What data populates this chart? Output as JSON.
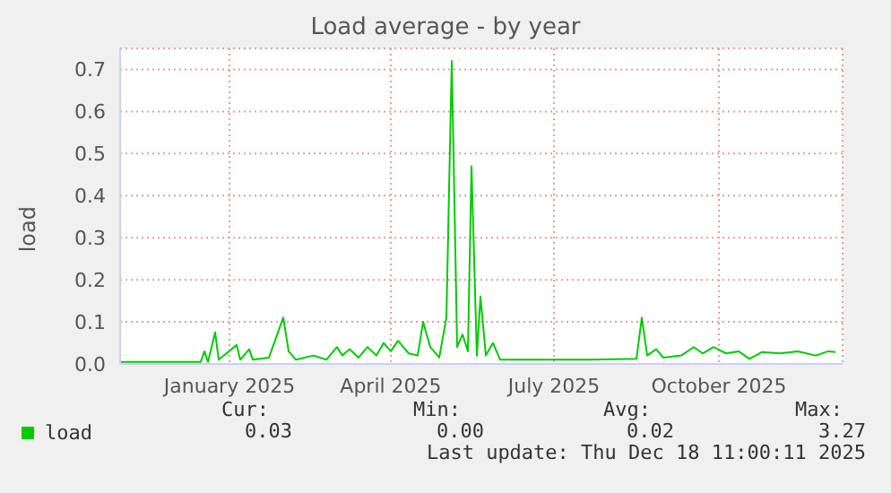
{
  "chart_data": {
    "type": "line",
    "title": "Load average - by year",
    "ylabel": "load",
    "x": [
      "2024-11-01",
      "2024-12-04",
      "2024-12-16",
      "2024-12-18",
      "2024-12-20",
      "2024-12-24",
      "2024-12-26",
      "2025-01-05",
      "2025-01-07",
      "2025-01-12",
      "2025-01-14",
      "2025-01-23",
      "2025-01-31",
      "2025-02-03",
      "2025-02-07",
      "2025-02-17",
      "2025-02-24",
      "2025-03-02",
      "2025-03-05",
      "2025-03-09",
      "2025-03-14",
      "2025-03-19",
      "2025-03-24",
      "2025-03-28",
      "2025-04-01",
      "2025-04-05",
      "2025-04-11",
      "2025-04-16",
      "2025-04-19",
      "2025-04-23",
      "2025-04-28",
      "2025-05-02",
      "2025-05-05",
      "2025-05-08",
      "2025-05-11",
      "2025-05-14",
      "2025-05-16",
      "2025-05-19",
      "2025-05-21",
      "2025-05-24",
      "2025-05-28",
      "2025-06-01",
      "2025-06-22",
      "2025-07-22",
      "2025-08-16",
      "2025-08-19",
      "2025-08-22",
      "2025-08-27",
      "2025-08-31",
      "2025-09-10",
      "2025-09-17",
      "2025-09-22",
      "2025-09-28",
      "2025-10-05",
      "2025-10-12",
      "2025-10-18",
      "2025-10-25",
      "2025-11-04",
      "2025-11-14",
      "2025-11-24",
      "2025-12-01",
      "2025-12-05"
    ],
    "series": [
      {
        "name": "load",
        "color": "#00cc00",
        "values": [
          0.005,
          0.005,
          0.005,
          0.03,
          0.005,
          0.075,
          0.01,
          0.045,
          0.01,
          0.035,
          0.01,
          0.015,
          0.11,
          0.03,
          0.01,
          0.02,
          0.01,
          0.04,
          0.02,
          0.035,
          0.015,
          0.04,
          0.02,
          0.05,
          0.03,
          0.055,
          0.025,
          0.02,
          0.1,
          0.04,
          0.015,
          0.11,
          0.72,
          0.04,
          0.07,
          0.03,
          0.47,
          0.02,
          0.16,
          0.02,
          0.05,
          0.01,
          0.01,
          0.01,
          0.012,
          0.11,
          0.02,
          0.035,
          0.015,
          0.02,
          0.04,
          0.025,
          0.04,
          0.025,
          0.03,
          0.012,
          0.028,
          0.025,
          0.03,
          0.02,
          0.03,
          0.028
        ]
      }
    ],
    "xlim": [
      "2024-11-01",
      "2025-12-09"
    ],
    "xticks": [
      {
        "value": "2025-01-01",
        "label": "January 2025"
      },
      {
        "value": "2025-04-01",
        "label": "April 2025"
      },
      {
        "value": "2025-07-01",
        "label": "July 2025"
      },
      {
        "value": "2025-10-01",
        "label": "October 2025"
      }
    ],
    "ylim": [
      0,
      0.75
    ],
    "yticks": [
      {
        "value": 0,
        "label": "0.0"
      },
      {
        "value": 0.1,
        "label": "0.1"
      },
      {
        "value": 0.2,
        "label": "0.2"
      },
      {
        "value": 0.3,
        "label": "0.3"
      },
      {
        "value": 0.4,
        "label": "0.4"
      },
      {
        "value": 0.5,
        "label": "0.5"
      },
      {
        "value": 0.6,
        "label": "0.6"
      },
      {
        "value": 0.7,
        "label": "0.7"
      }
    ],
    "grid": true,
    "legend": "bottom left",
    "marker": "none",
    "line_style": "solid",
    "annotations": [
      "Cur:",
      "Min:",
      "Avg:",
      "Max:",
      "0.03",
      "0.00",
      "0.02",
      "3.27",
      "Last update: Thu Dec 18 11:00:11 2025"
    ]
  }
}
